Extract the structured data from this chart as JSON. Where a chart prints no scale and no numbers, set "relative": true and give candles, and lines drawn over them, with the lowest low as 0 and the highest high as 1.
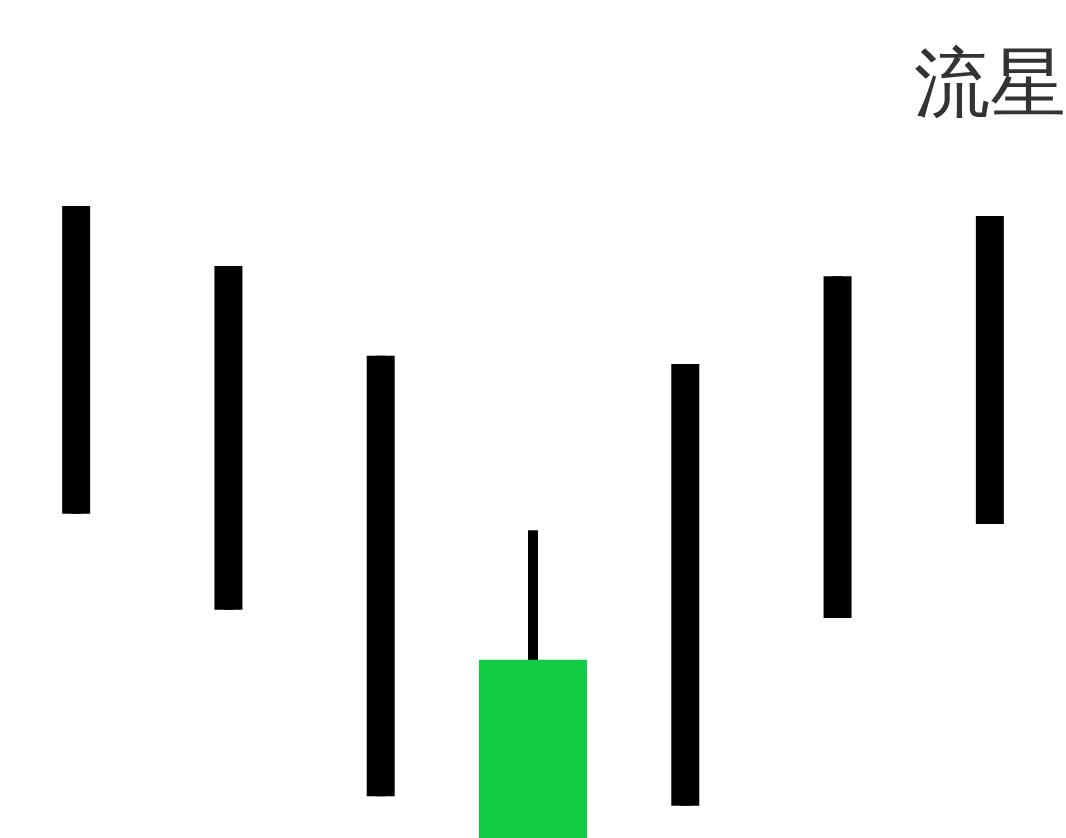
{
  "chart_data": {
    "type": "candlestick",
    "title": "流星",
    "relative": true,
    "categories": [
      null,
      null,
      null,
      null,
      null,
      null,
      null
    ],
    "ohlc": [
      [
        1.0,
        1.0,
        0.513,
        0.513
      ],
      [
        0.905,
        0.905,
        0.361,
        0.361
      ],
      [
        0.763,
        0.763,
        0.066,
        0.066
      ],
      [
        0,
        0.487,
        0,
        0.282
      ],
      [
        0.75,
        0.75,
        0.051,
        0.051
      ],
      [
        0.889,
        0.889,
        0.348,
        0.348
      ],
      [
        0.984,
        0.984,
        0.497,
        0.497
      ]
    ],
    "colors": [
      "#000000",
      "#000000",
      "#000000",
      "#11cc44",
      "#000000",
      "#000000",
      "#000000"
    ]
  }
}
